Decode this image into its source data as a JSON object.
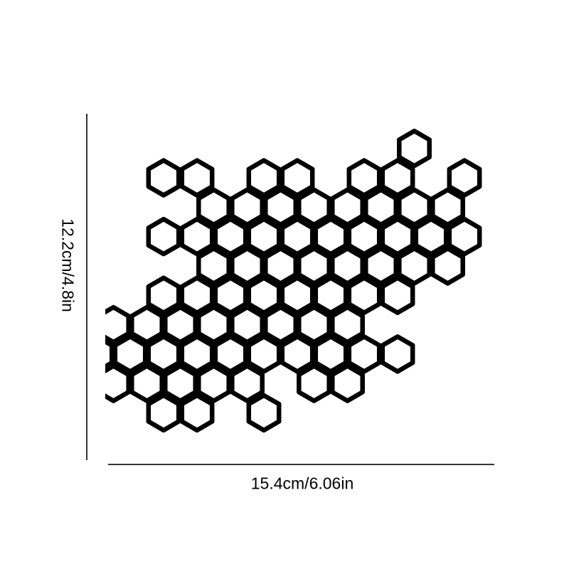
{
  "product": {
    "name": "honeycomb-wall-decal",
    "fill_color": "#ffffff",
    "stroke_color": "#000000"
  },
  "dimensions": {
    "height_label": "12.2cm/4.8in",
    "width_label": "15.4cm/6.06in",
    "line_color": "#333333"
  }
}
